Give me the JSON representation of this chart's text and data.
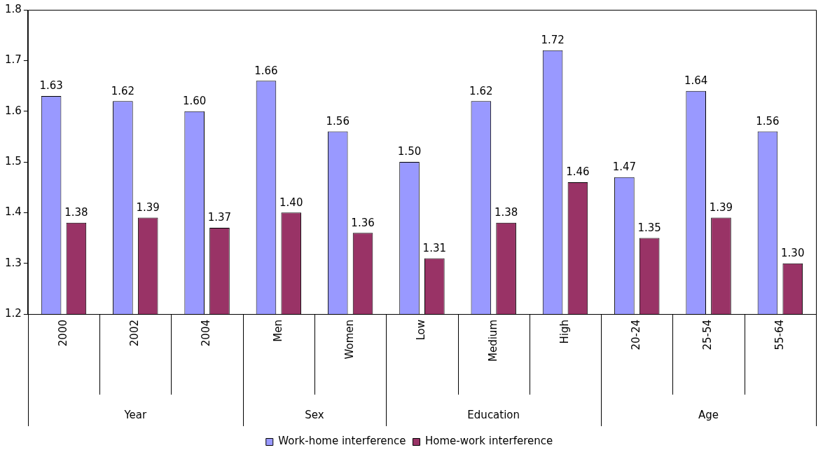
{
  "chart_data": {
    "type": "bar",
    "categories": [
      "2000",
      "2002",
      "2004",
      "Men",
      "Women",
      "Low",
      "Medium",
      "High",
      "20-24",
      "25-54",
      "55-64"
    ],
    "series": [
      {
        "name": "Work-home interference",
        "color": "#9999ff",
        "values": [
          1.63,
          1.62,
          1.6,
          1.66,
          1.56,
          1.5,
          1.62,
          1.72,
          1.47,
          1.64,
          1.56
        ],
        "value_labels": [
          "1.63",
          "1.62",
          "1.60",
          "1.66",
          "1.56",
          "1.50",
          "1.62",
          "1.72",
          "1.47",
          "1.64",
          "1.56"
        ]
      },
      {
        "name": "Home-work interference",
        "color": "#993366",
        "values": [
          1.38,
          1.39,
          1.37,
          1.4,
          1.36,
          1.31,
          1.38,
          1.46,
          1.35,
          1.39,
          1.3
        ],
        "value_labels": [
          "1.38",
          "1.39",
          "1.37",
          "1.40",
          "1.36",
          "1.31",
          "1.38",
          "1.46",
          "1.35",
          "1.39",
          "1.30"
        ]
      }
    ],
    "annotations": [
      {
        "text": "Year",
        "x": "2002"
      },
      {
        "text": "Sex",
        "x": "Men"
      },
      {
        "text": "Education",
        "x": "Medium"
      },
      {
        "text": "Age",
        "x": "25-54"
      }
    ],
    "ylim": [
      1.2,
      1.8
    ],
    "yticks": [
      1.2,
      1.3,
      1.4,
      1.5,
      1.6,
      1.7,
      1.8
    ],
    "grid": false,
    "legend": "bottom"
  }
}
